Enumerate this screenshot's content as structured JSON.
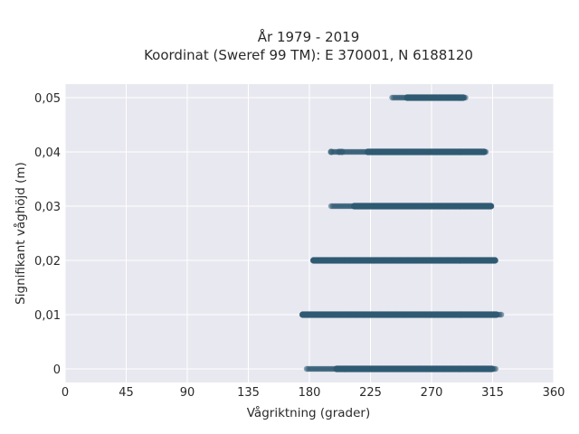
{
  "chart_data": {
    "type": "scatter",
    "title": "År 1979 - 2019",
    "subtitle": "Koordinat (Sweref 99 TM): E 370001, N 6188120",
    "xlabel": "Vågriktning (grader)",
    "ylabel": "Signifikant våghöjd (m)",
    "xlim": [
      0,
      360
    ],
    "ylim": [
      -0.0025,
      0.0525
    ],
    "x_ticks": [
      0,
      45,
      90,
      135,
      180,
      225,
      270,
      315,
      360
    ],
    "x_tick_labels": [
      "0",
      "45",
      "90",
      "135",
      "180",
      "225",
      "270",
      "315",
      "360"
    ],
    "y_ticks": [
      0,
      0.01,
      0.02,
      0.03,
      0.04,
      0.05
    ],
    "y_tick_labels": [
      "0",
      "0,01",
      "0,02",
      "0,03",
      "0,04",
      "0,05"
    ],
    "grid": true,
    "background": "#e8e8f0",
    "marker_color": "#2f5a72",
    "series": [
      {
        "points_note": "clusters",
        "clusters": [
          {
            "y": 0.05,
            "dense_from": 252,
            "dense_to": 294,
            "sparse_from": 241,
            "sparse_to": 295
          },
          {
            "y": 0.04,
            "dense_from": 223,
            "dense_to": 309,
            "sparse_from": 196,
            "sparse_to": 311,
            "extra_x": [
              196,
              202,
              204
            ]
          },
          {
            "y": 0.03,
            "dense_from": 213,
            "dense_to": 314,
            "sparse_from": 196,
            "sparse_to": 314
          },
          {
            "y": 0.02,
            "dense_from": 183,
            "dense_to": 317,
            "sparse_from": 183,
            "sparse_to": 317
          },
          {
            "y": 0.01,
            "dense_from": 175,
            "dense_to": 318,
            "sparse_from": 175,
            "sparse_to": 322
          },
          {
            "y": 0.0,
            "dense_from": 200,
            "dense_to": 315,
            "sparse_from": 178,
            "sparse_to": 318
          }
        ]
      }
    ]
  }
}
